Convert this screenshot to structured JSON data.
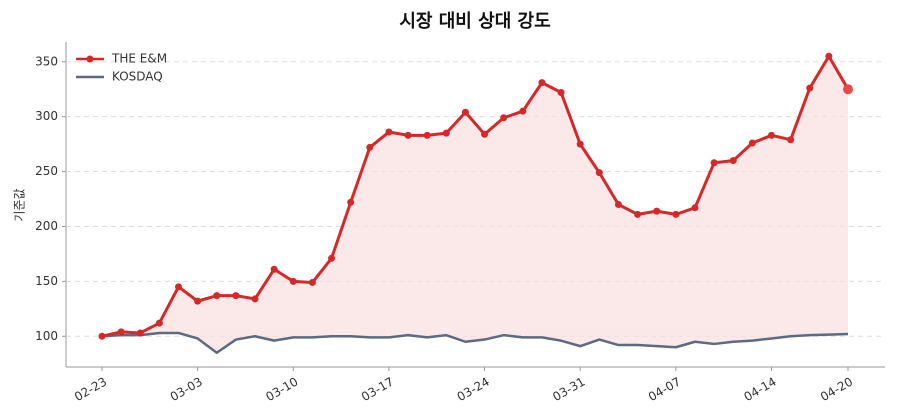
{
  "chart_data": {
    "type": "line",
    "title": "시장 대비 상대 강도",
    "y_label": "기준값",
    "categories": [
      "02-23",
      null,
      null,
      null,
      null,
      "03-03",
      null,
      null,
      null,
      null,
      "03-10",
      null,
      null,
      null,
      null,
      "03-17",
      null,
      null,
      null,
      null,
      "03-24",
      null,
      null,
      null,
      null,
      "03-31",
      null,
      null,
      null,
      null,
      "04-07",
      null,
      null,
      null,
      null,
      "04-14",
      null,
      null,
      null,
      "04-20"
    ],
    "series": [
      {
        "name": "THE E&M",
        "color": "#d62828",
        "values": [
          100,
          104,
          103,
          112,
          145,
          132,
          137,
          137,
          134,
          161,
          150,
          149,
          171,
          222,
          272,
          286,
          283,
          283,
          285,
          304,
          284,
          299,
          305,
          331,
          322,
          275,
          249,
          220,
          211,
          214,
          211,
          217,
          258,
          260,
          276,
          283,
          279,
          326,
          355,
          325
        ]
      },
      {
        "name": "KOSDAQ",
        "color": "#5b6b82",
        "values": [
          100,
          101,
          101,
          103,
          103,
          98,
          85,
          97,
          100,
          96,
          99,
          99,
          100,
          100,
          99,
          99,
          101,
          99,
          101,
          95,
          97,
          101,
          99,
          99,
          96,
          91,
          97,
          92,
          92,
          91,
          90,
          95,
          93,
          95,
          96,
          98,
          100,
          101,
          101.5,
          102
        ]
      }
    ],
    "fill_color": "#f9dede",
    "ylim": [
      72,
      368
    ],
    "yticks": [
      100,
      150,
      200,
      250,
      300,
      350
    ],
    "grid": true,
    "legend": "upper-left"
  }
}
